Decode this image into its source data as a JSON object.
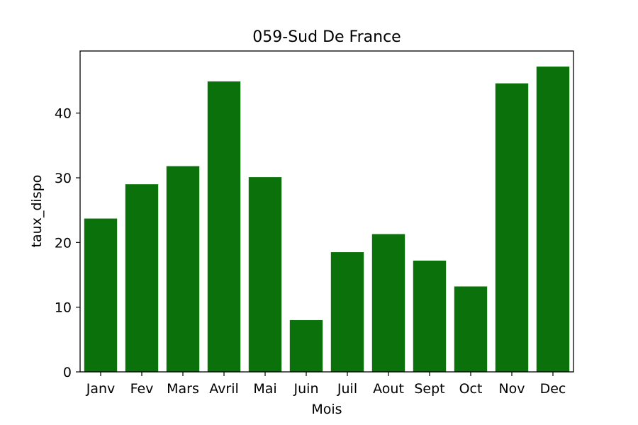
{
  "chart_data": {
    "type": "bar",
    "title": "059-Sud De France",
    "xlabel": "Mois",
    "ylabel": "taux_dispo",
    "categories": [
      "Janv",
      "Fev",
      "Mars",
      "Avril",
      "Mai",
      "Juin",
      "Juil",
      "Aout",
      "Sept",
      "Oct",
      "Nov",
      "Dec"
    ],
    "values": [
      23.7,
      29.0,
      31.8,
      44.9,
      30.1,
      8.0,
      18.5,
      21.3,
      17.2,
      13.2,
      44.6,
      47.2
    ],
    "yticks": [
      0,
      10,
      20,
      30,
      40
    ],
    "ylim": [
      0,
      49.6
    ],
    "bar_color": "#0b720b",
    "grid": false,
    "legend": "none"
  }
}
